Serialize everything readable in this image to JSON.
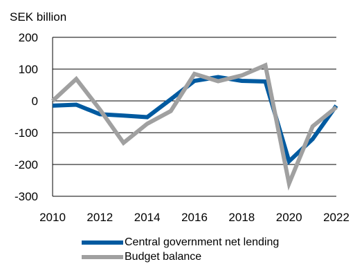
{
  "chart_data": {
    "type": "line",
    "ylabel": "SEK billion",
    "x": [
      2010,
      2011,
      2012,
      2013,
      2014,
      2015,
      2016,
      2017,
      2018,
      2019,
      2020,
      2021,
      2022
    ],
    "xticks": [
      "2010",
      "2012",
      "2014",
      "2016",
      "2018",
      "2020",
      "2022"
    ],
    "yticks": [
      "200",
      "100",
      "0",
      "-100",
      "-200",
      "-300"
    ],
    "ylim": [
      -300,
      200
    ],
    "xlim": [
      2010,
      2022
    ],
    "grid": "horizontal",
    "legend": "bottom",
    "series": [
      {
        "name": "Central government net lending",
        "color": "#005aa0",
        "values": [
          -15,
          -12,
          -42,
          -46,
          -51,
          5,
          63,
          75,
          63,
          61,
          -190,
          -120,
          -15
        ]
      },
      {
        "name": "Budget balance",
        "color": "#a0a0a0",
        "values": [
          0,
          69,
          -27,
          -132,
          -72,
          -32,
          85,
          62,
          80,
          112,
          -260,
          -80,
          -20
        ]
      }
    ]
  }
}
